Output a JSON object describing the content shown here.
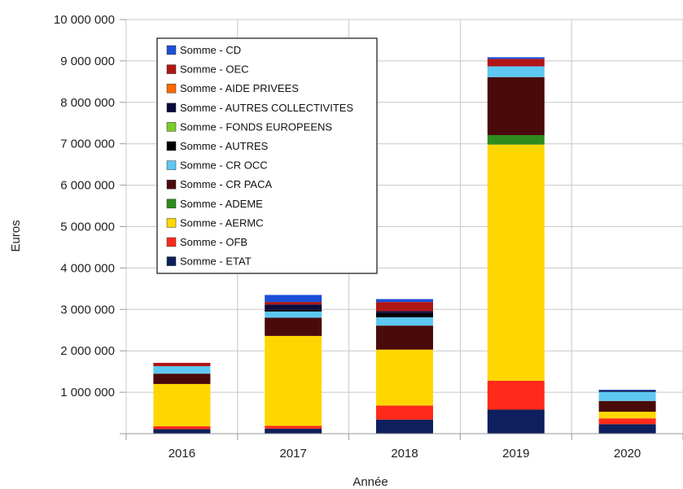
{
  "chart_data": {
    "type": "bar",
    "stacked": true,
    "title": "",
    "xlabel": "Année",
    "ylabel": "Euros",
    "ylim": [
      0,
      10000000
    ],
    "y_ticks": [
      {
        "value": 1000000,
        "label": "1 000 000"
      },
      {
        "value": 2000000,
        "label": "2 000 000"
      },
      {
        "value": 3000000,
        "label": "3 000 000"
      },
      {
        "value": 4000000,
        "label": "4 000 000"
      },
      {
        "value": 5000000,
        "label": "5 000 000"
      },
      {
        "value": 6000000,
        "label": "6 000 000"
      },
      {
        "value": 7000000,
        "label": "7 000 000"
      },
      {
        "value": 8000000,
        "label": "8 000 000"
      },
      {
        "value": 9000000,
        "label": "9 000 000"
      },
      {
        "value": 10000000,
        "label": "10 000 000"
      }
    ],
    "grid": true,
    "legend_position": "top-left",
    "categories": [
      "2016",
      "2017",
      "2018",
      "2019",
      "2020"
    ],
    "series": [
      {
        "name": "Somme - ETAT",
        "color": "#0d1f5c",
        "values": [
          110000,
          120000,
          340000,
          580000,
          230000
        ]
      },
      {
        "name": "Somme - OFB",
        "color": "#ff2a1a",
        "values": [
          70000,
          70000,
          340000,
          700000,
          140000
        ]
      },
      {
        "name": "Somme - AERMC",
        "color": "#ffd700",
        "values": [
          1020000,
          2170000,
          1350000,
          5700000,
          160000
        ]
      },
      {
        "name": "Somme - ADEME",
        "color": "#2e8b1e",
        "values": [
          0,
          0,
          0,
          230000,
          0
        ]
      },
      {
        "name": "Somme - CR PACA",
        "color": "#4a0a0a",
        "values": [
          250000,
          440000,
          580000,
          1400000,
          260000
        ]
      },
      {
        "name": "Somme - CR OCC",
        "color": "#5ec8f2",
        "values": [
          180000,
          150000,
          200000,
          260000,
          220000
        ]
      },
      {
        "name": "Somme - AUTRES",
        "color": "#000000",
        "values": [
          0,
          40000,
          100000,
          0,
          0
        ]
      },
      {
        "name": "Somme - FONDS EUROPEENS",
        "color": "#7acc29",
        "values": [
          0,
          0,
          0,
          0,
          0
        ]
      },
      {
        "name": "Somme - AUTRES COLLECTIVITES",
        "color": "#0b0b3a",
        "values": [
          0,
          130000,
          50000,
          0,
          30000
        ]
      },
      {
        "name": "Somme - AIDE PRIVEES",
        "color": "#ff6a00",
        "values": [
          0,
          0,
          0,
          0,
          0
        ]
      },
      {
        "name": "Somme - OEC",
        "color": "#b01515",
        "values": [
          80000,
          60000,
          220000,
          180000,
          0
        ]
      },
      {
        "name": "Somme - CD",
        "color": "#1a4fd6",
        "values": [
          0,
          170000,
          70000,
          40000,
          20000
        ]
      }
    ],
    "legend_order": [
      "Somme - CD",
      "Somme - OEC",
      "Somme - AIDE PRIVEES",
      "Somme - AUTRES COLLECTIVITES",
      "Somme - FONDS EUROPEENS",
      "Somme - AUTRES",
      "Somme - CR OCC",
      "Somme - CR PACA",
      "Somme - ADEME",
      "Somme - AERMC",
      "Somme - OFB",
      "Somme - ETAT"
    ]
  }
}
